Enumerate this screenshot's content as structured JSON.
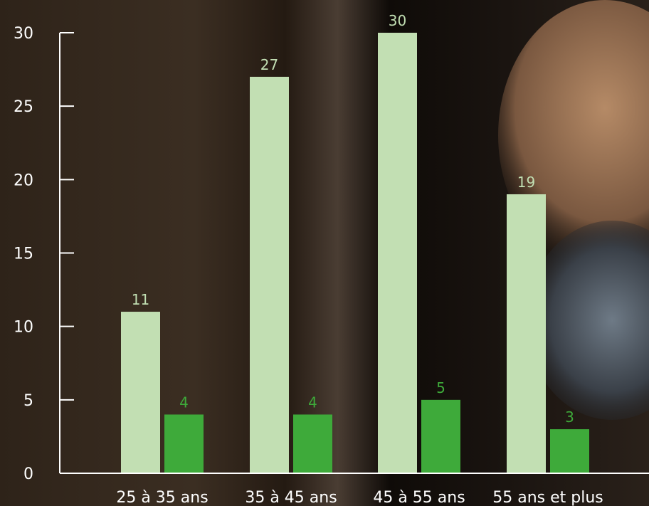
{
  "chart_data": {
    "type": "bar",
    "categories": [
      "25 à 35 ans",
      "35 à 45 ans",
      "45 à 55 ans",
      "55 ans et plus"
    ],
    "series": [
      {
        "values": [
          11,
          27,
          30,
          19
        ],
        "color": "#c2dfb3"
      },
      {
        "values": [
          4,
          4,
          5,
          3
        ],
        "color": "#3eaa3a"
      }
    ],
    "ylim": [
      0,
      30
    ],
    "yticks": [
      0,
      5,
      10,
      15,
      20,
      25,
      30
    ],
    "grid": false,
    "legend": "none",
    "colors": {
      "axis": "#ffffff",
      "tick_label": "#ffffff",
      "light_label": "#c2dfb3",
      "dark_label": "#3eaa3a"
    }
  }
}
